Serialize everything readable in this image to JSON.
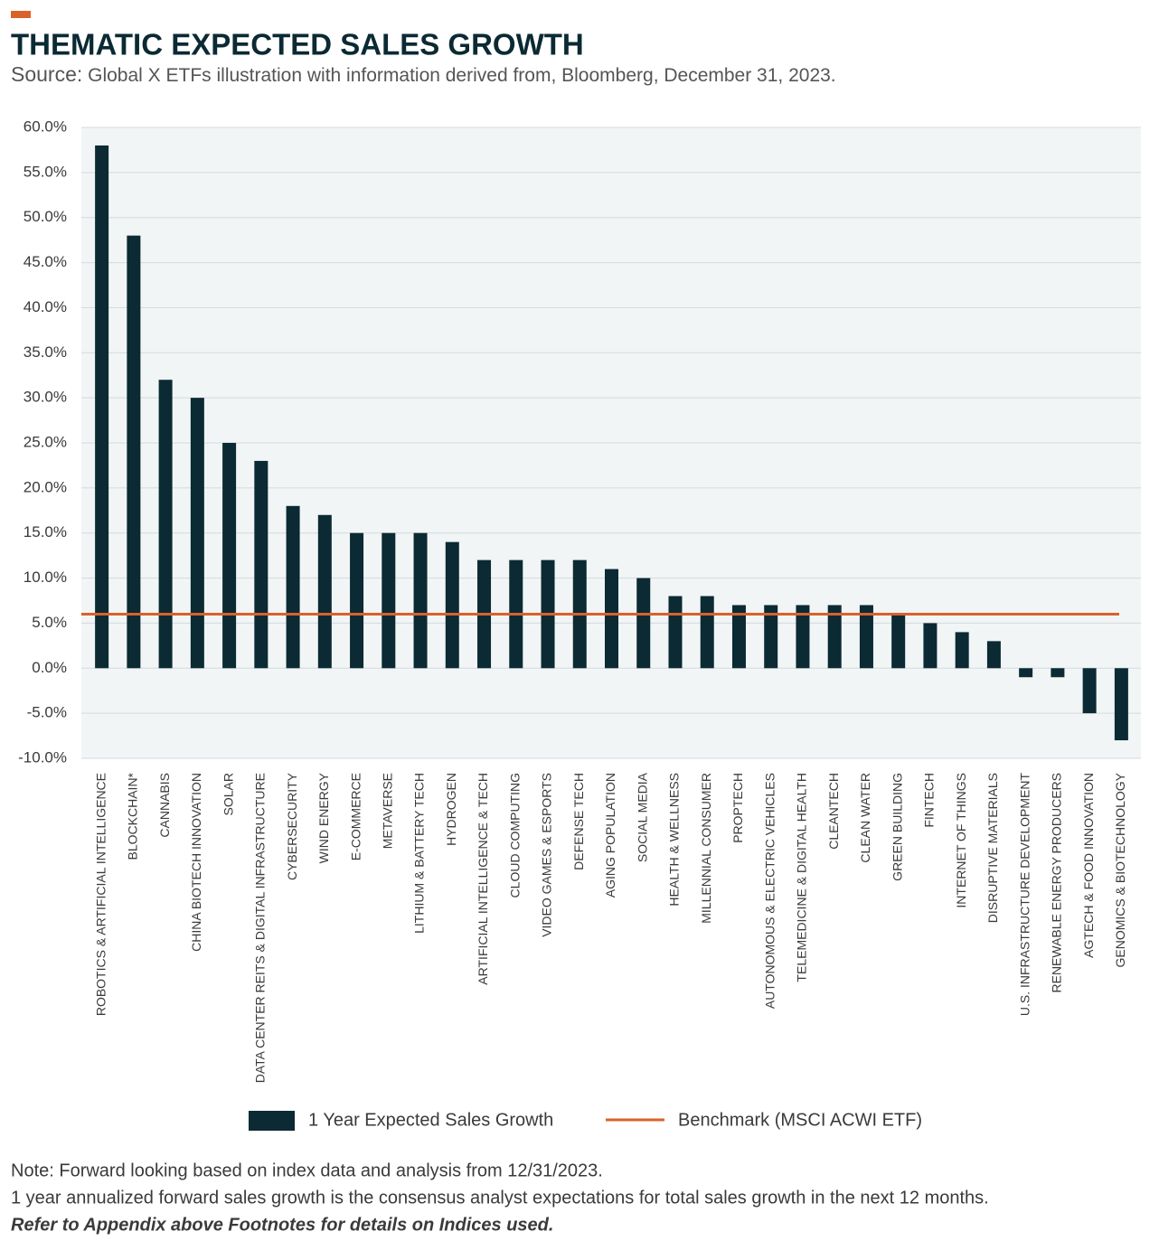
{
  "chart_data": {
    "type": "bar",
    "title": "THEMATIC EXPECTED SALES GROWTH",
    "subtitle_label": "Source:",
    "subtitle": "Global X ETFs illustration with information derived from, Bloomberg, December 31, 2023.",
    "categories": [
      "ROBOTICS & ARTIFICIAL INTELLIGENCE",
      "BLOCKCHAIN*",
      "CANNABIS",
      "CHINA BIOTECH INNOVATION",
      "SOLAR",
      "DATA CENTER REITS & DIGITAL INFRASTRUCTURE",
      "CYBERSECURITY",
      "WIND ENERGY",
      "E-COMMERCE",
      "METAVERSE",
      "LITHIUM & BATTERY TECH",
      "HYDROGEN",
      "ARTIFICIAL INTELLIGENCE & TECH",
      "CLOUD COMPUTING",
      "VIDEO GAMES & ESPORTS",
      "DEFENSE TECH",
      "AGING POPULATION",
      "SOCIAL MEDIA",
      "HEALTH & WELLNESS",
      "MILLENNIAL CONSUMER",
      "PROPTECH",
      "AUTONOMOUS & ELECTRIC VEHICLES",
      "TELEMEDICINE & DIGITAL HEALTH",
      "CLEANTECH",
      "CLEAN WATER",
      "GREEN BUILDING",
      "FINTECH",
      "INTERNET OF THINGS",
      "DISRUPTIVE MATERIALS",
      "U.S. INFRASTRUCTURE DEVELOPMENT",
      "RENEWABLE ENERGY PRODUCERS",
      "AGTECH & FOOD INNOVATION",
      "GENOMICS & BIOTECHNOLOGY"
    ],
    "series": [
      {
        "name": "1 Year Expected Sales Growth",
        "color": "#0b2a33",
        "values": [
          58,
          48,
          32,
          30,
          25,
          23,
          18,
          17,
          15,
          15,
          15,
          14,
          12,
          12,
          12,
          12,
          11,
          10,
          8,
          8,
          7,
          7,
          7,
          7,
          7,
          6,
          5,
          4,
          3,
          -1,
          -1,
          -5,
          -8
        ]
      }
    ],
    "benchmark": {
      "name": "Benchmark (MSCI ACWI ETF)",
      "value": 6,
      "color": "#d9622b"
    },
    "ylim": [
      -10,
      60
    ],
    "yticks": [
      {
        "value": -10,
        "label": "-10.0%"
      },
      {
        "value": -5,
        "label": "-5.0%"
      },
      {
        "value": 0,
        "label": "0.0%"
      },
      {
        "value": 5,
        "label": "5.0%"
      },
      {
        "value": 10,
        "label": "10.0%"
      },
      {
        "value": 15,
        "label": "15.0%"
      },
      {
        "value": 20,
        "label": "20.0%"
      },
      {
        "value": 25,
        "label": "25.0%"
      },
      {
        "value": 30,
        "label": "30.0%"
      },
      {
        "value": 35,
        "label": "35.0%"
      },
      {
        "value": 40,
        "label": "40.0%"
      },
      {
        "value": 45,
        "label": "45.0%"
      },
      {
        "value": 50,
        "label": "50.0%"
      },
      {
        "value": 55,
        "label": "55.0%"
      },
      {
        "value": 60,
        "label": "60.0%"
      }
    ],
    "grid": true,
    "notes": [
      "Note: Forward looking based on index data and analysis from 12/31/2023.",
      "1 year annualized forward sales growth is the consensus analyst expectations for total sales growth in the next 12 months."
    ],
    "emphasis_note": "Refer to Appendix above Footnotes for details on Indices used."
  }
}
